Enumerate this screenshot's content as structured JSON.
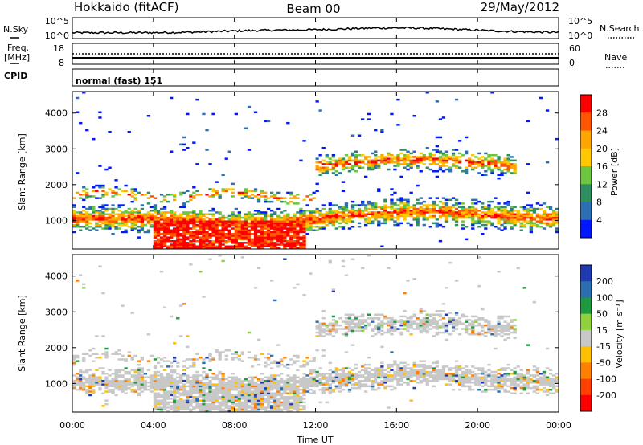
{
  "header": {
    "station": "Hokkaido (fitACF)",
    "beam": "Beam 00",
    "date": "29/May/2012"
  },
  "noise_panel": {
    "left_label": "N.Sky",
    "left_ticks": [
      "10^5",
      "10^0"
    ],
    "right_label": "N.Search",
    "right_ticks": [
      "10^5",
      "10^0"
    ]
  },
  "freq_panel": {
    "left_label_line1": "Freq.",
    "left_label_line2": "[MHz]",
    "left_ticks": [
      "18",
      "8"
    ],
    "right_label": "Nave",
    "right_ticks": [
      "60",
      "0"
    ]
  },
  "cpid_panel": {
    "label": "CPID",
    "value": "normal (fast) 151"
  },
  "chart_data": [
    {
      "type": "heatmap",
      "name": "power",
      "ylabel": "Slant Range [km]",
      "ylim": [
        200,
        4600
      ],
      "yticks": [
        "1000",
        "2000",
        "3000",
        "4000"
      ],
      "colorbar_label": "Power [dB]",
      "colorbar_ticks": [
        "28",
        "24",
        "20",
        "16",
        "12",
        "8",
        "4"
      ],
      "colorbar_colors": [
        "#ff0000",
        "#ff5500",
        "#ffa500",
        "#ffc800",
        "#6cc63f",
        "#2f8f61",
        "#2d6fb5",
        "#0018ff"
      ]
    },
    {
      "type": "heatmap",
      "name": "velocity",
      "ylabel": "Slant Range [km]",
      "ylim": [
        200,
        4600
      ],
      "yticks": [
        "1000",
        "2000",
        "3000",
        "4000"
      ],
      "colorbar_label": "Velocity [m s⁻¹]",
      "colorbar_ticks": [
        "200",
        "100",
        "50",
        "15",
        "-15",
        "-50",
        "-100",
        "-200"
      ],
      "colorbar_colors": [
        "#1f3ab3",
        "#2b6fb0",
        "#1f9a40",
        "#8fd13a",
        "#c8c8c8",
        "#ffc000",
        "#ff8000",
        "#ff4000",
        "#ff0000"
      ]
    }
  ],
  "time_axis": {
    "label": "Time UT",
    "ticks": [
      "00:00",
      "04:00",
      "08:00",
      "12:00",
      "16:00",
      "20:00",
      "00:00"
    ]
  }
}
